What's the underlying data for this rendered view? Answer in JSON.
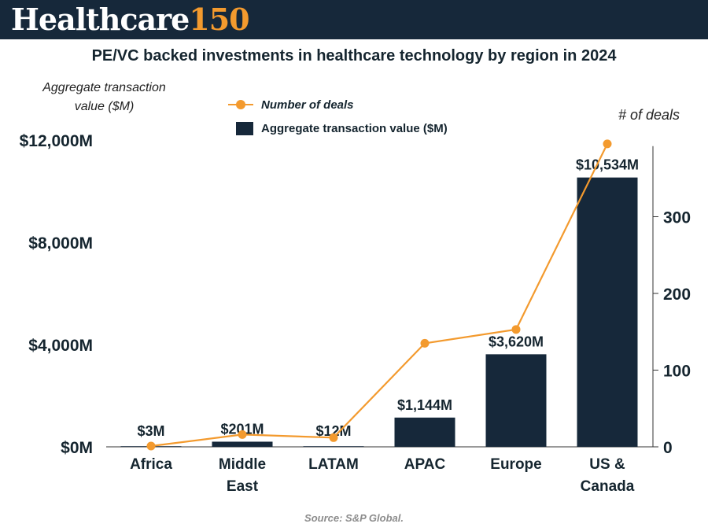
{
  "header": {
    "brand_word": "Healthcare",
    "brand_number": "150"
  },
  "colors": {
    "navy": "#16283a",
    "orange": "#f39a2e"
  },
  "chart_data": {
    "type": "bar",
    "title": "PE/VC backed investments in healthcare technology by region in 2024",
    "categories": [
      [
        "Africa"
      ],
      [
        "Middle",
        "East"
      ],
      [
        "LATAM"
      ],
      [
        "APAC"
      ],
      [
        "Europe"
      ],
      [
        "US &",
        "Canada"
      ]
    ],
    "series": [
      {
        "name": "Aggregate transaction value ($M)",
        "type": "bar",
        "axis": "left",
        "values": [
          3,
          201,
          12,
          1144,
          3620,
          10534
        ],
        "labels": [
          "$3M",
          "$201M",
          "$12M",
          "$1,144M",
          "$3,620M",
          "$10,534M"
        ]
      },
      {
        "name": "Number of deals",
        "type": "line",
        "axis": "right",
        "values": [
          1,
          16,
          12,
          135,
          153,
          395
        ]
      }
    ],
    "y_left": {
      "title": "Aggregate transaction value ($M)",
      "range": [
        0,
        12000
      ],
      "ticks": [
        0,
        4000,
        8000,
        12000
      ],
      "tick_labels": [
        "$0M",
        "$4,000M",
        "$8,000M",
        "$12,000M"
      ]
    },
    "y_right": {
      "title": "# of deals",
      "range": [
        0,
        400
      ],
      "ticks": [
        0,
        100,
        200,
        300
      ],
      "tick_labels": [
        "0",
        "100",
        "200",
        "300"
      ]
    },
    "legend": "top-center",
    "grid": false
  },
  "source": "Source: S&P Global."
}
